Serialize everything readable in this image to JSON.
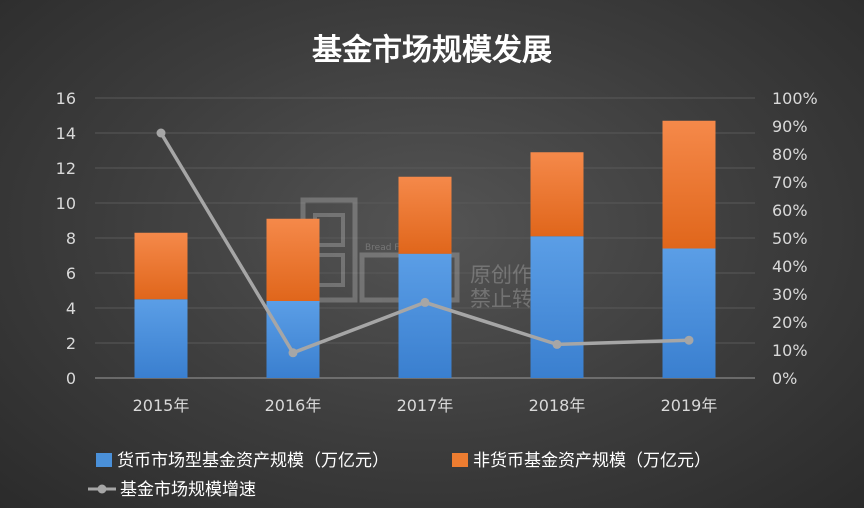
{
  "chart_data": {
    "type": "bar",
    "title": "基金市场规模发展",
    "categories": [
      "2015年",
      "2016年",
      "2017年",
      "2018年",
      "2019年"
    ],
    "series": [
      {
        "name": "货币市场型基金资产规模（万亿元）",
        "kind": "stacked-bar",
        "axis": "left",
        "color": "#4a90d9",
        "values": [
          4.5,
          4.4,
          7.1,
          8.1,
          7.4
        ]
      },
      {
        "name": "非货币基金资产规模（万亿元）",
        "kind": "stacked-bar",
        "axis": "left",
        "color": "#ed7d31",
        "values": [
          3.8,
          4.7,
          4.4,
          4.8,
          7.3
        ]
      },
      {
        "name": "基金市场规模增速",
        "kind": "line",
        "axis": "right",
        "color": "#a6a6a6",
        "values": [
          0.875,
          0.09,
          0.27,
          0.12,
          0.135
        ]
      }
    ],
    "left_axis": {
      "ylim": [
        0,
        16
      ],
      "ticks": [
        "0",
        "2",
        "4",
        "6",
        "8",
        "10",
        "12",
        "14",
        "16"
      ]
    },
    "right_axis": {
      "ylim": [
        0,
        1
      ],
      "ticks": [
        "0%",
        "10%",
        "20%",
        "30%",
        "40%",
        "50%",
        "60%",
        "70%",
        "80%",
        "90%",
        "100%"
      ]
    },
    "grid": true,
    "legend_position": "bottom-left"
  },
  "watermark": {
    "lines": [
      "原创作品",
      "禁止转载"
    ],
    "small_text": "Bread Finance"
  }
}
